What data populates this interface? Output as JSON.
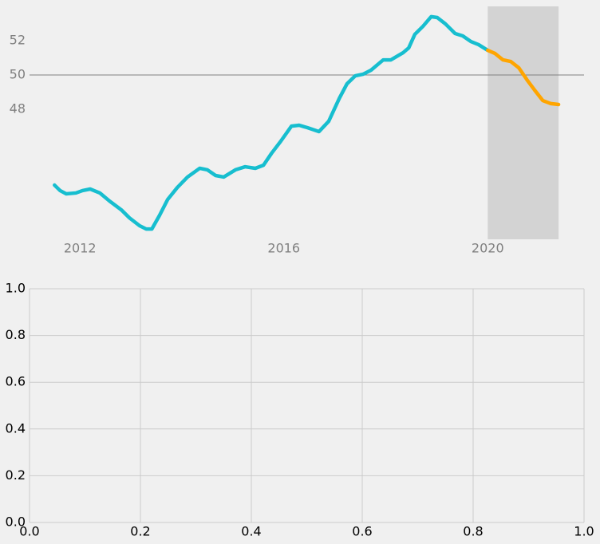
{
  "chart_data": [
    {
      "type": "line",
      "series": [
        {
          "color": "#17becf",
          "x": [
            2011.5,
            2011.61,
            2011.73,
            2011.92,
            2012.05,
            2012.2,
            2012.39,
            2012.58,
            2012.81,
            2012.97,
            2013.17,
            2013.3,
            2013.41,
            2013.56,
            2013.72,
            2013.91,
            2014.11,
            2014.35,
            2014.5,
            2014.66,
            2014.82,
            2015.05,
            2015.24,
            2015.44,
            2015.6,
            2015.76,
            2015.94,
            2016.15,
            2016.3,
            2016.46,
            2016.69,
            2016.88,
            2017.09,
            2017.24,
            2017.4,
            2017.56,
            2017.71,
            2017.95,
            2018.1,
            2018.34,
            2018.45,
            2018.57,
            2018.73,
            2018.89,
            2019.01,
            2019.17,
            2019.36,
            2019.51,
            2019.67,
            2019.82,
            2020.0
          ],
          "values": [
            43.58,
            43.26,
            43.07,
            43.12,
            43.26,
            43.35,
            43.12,
            42.65,
            42.14,
            41.67,
            41.21,
            41.02,
            41.02,
            41.81,
            42.74,
            43.44,
            44.05,
            44.56,
            44.47,
            44.14,
            44.05,
            44.47,
            44.65,
            44.56,
            44.74,
            45.44,
            46.14,
            47.02,
            47.07,
            46.93,
            46.7,
            47.3,
            48.65,
            49.49,
            49.95,
            50.05,
            50.28,
            50.88,
            50.88,
            51.3,
            51.58,
            52.37,
            52.84,
            53.4,
            53.35,
            52.98,
            52.42,
            52.28,
            51.95,
            51.77,
            51.44
          ]
        },
        {
          "color": "#ffa500",
          "x": [
            2020.0,
            2020.14,
            2020.3,
            2020.45,
            2020.61,
            2020.77,
            2020.92,
            2021.08,
            2021.24,
            2021.39
          ],
          "values": [
            51.44,
            51.26,
            50.88,
            50.79,
            50.42,
            49.72,
            49.12,
            48.51,
            48.33,
            48.28
          ]
        }
      ],
      "xlim": [
        2011.01,
        2021.89
      ],
      "xticks": [
        2012,
        2016,
        2020
      ],
      "ylim": [
        40.42,
        54.0
      ],
      "yticks": [
        48,
        50,
        52
      ],
      "hline": 50,
      "span": [
        2020,
        2021.39
      ],
      "span_color": "#d3d3d3",
      "grid": false
    },
    {
      "type": "line",
      "series": [],
      "xlim": [
        0,
        1
      ],
      "xticks": [
        {
          "value": 0,
          "label": "0.0"
        },
        {
          "value": 0.2,
          "label": "0.2"
        },
        {
          "value": 0.4,
          "label": "0.4"
        },
        {
          "value": 0.6,
          "label": "0.6"
        },
        {
          "value": 0.8,
          "label": "0.8"
        },
        {
          "value": 1,
          "label": "1.0"
        }
      ],
      "ylim": [
        0,
        1
      ],
      "yticks": [
        {
          "value": 0,
          "label": "0.0"
        },
        {
          "value": 0.2,
          "label": "0.2"
        },
        {
          "value": 0.4,
          "label": "0.4"
        },
        {
          "value": 0.6,
          "label": "0.6"
        },
        {
          "value": 0.8,
          "label": "0.8"
        },
        {
          "value": 1,
          "label": "1.0"
        }
      ],
      "grid": true
    }
  ]
}
